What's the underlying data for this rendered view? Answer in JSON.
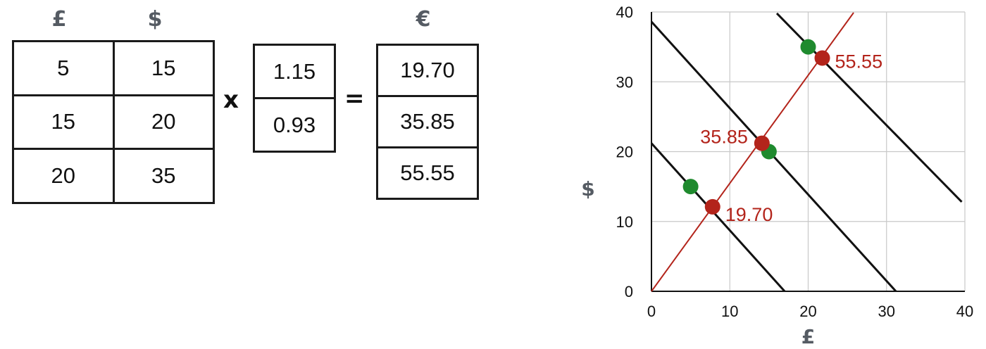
{
  "left_panel": {
    "col_headers": {
      "pounds": "£",
      "dollars": "$",
      "euros": "€"
    },
    "matrix_a": [
      [
        "5",
        "15"
      ],
      [
        "15",
        "20"
      ],
      [
        "20",
        "35"
      ]
    ],
    "times_symbol": "x",
    "vector_b": [
      "1.15",
      "0.93"
    ],
    "equals_symbol": "=",
    "result": [
      "19.70",
      "35.85",
      "55.55"
    ]
  },
  "chart_data": {
    "type": "scatter",
    "xlabel": "£",
    "ylabel": "$",
    "xlim": [
      0,
      40
    ],
    "ylim": [
      0,
      40
    ],
    "x_ticks": [
      "0",
      "10",
      "20",
      "30",
      "40"
    ],
    "y_ticks": [
      "0",
      "10",
      "20",
      "30",
      "40"
    ],
    "grid": true,
    "series": [
      {
        "color": "#1f8a2e",
        "points": [
          [
            5,
            15
          ],
          [
            15,
            20
          ],
          [
            20,
            35
          ]
        ]
      },
      {
        "color": "#b3241b",
        "points": [
          [
            7.8,
            12.1
          ],
          [
            14.1,
            21.2
          ],
          [
            21.8,
            33.4
          ]
        ],
        "labels": [
          "19.70",
          "35.85",
          "55.55"
        ]
      }
    ],
    "red_line": {
      "color": "#b3241b",
      "from": [
        0,
        0
      ],
      "to": [
        25.8,
        39.9
      ]
    },
    "level_lines": [
      {
        "color": "#111111",
        "from": [
          0,
          21.2
        ],
        "to": [
          17,
          0
        ]
      },
      {
        "color": "#111111",
        "from": [
          0,
          38.6
        ],
        "to": [
          31.2,
          0
        ]
      },
      {
        "color": "#111111",
        "from": [
          16,
          39.8
        ],
        "to": [
          39.6,
          12.8
        ]
      }
    ]
  }
}
